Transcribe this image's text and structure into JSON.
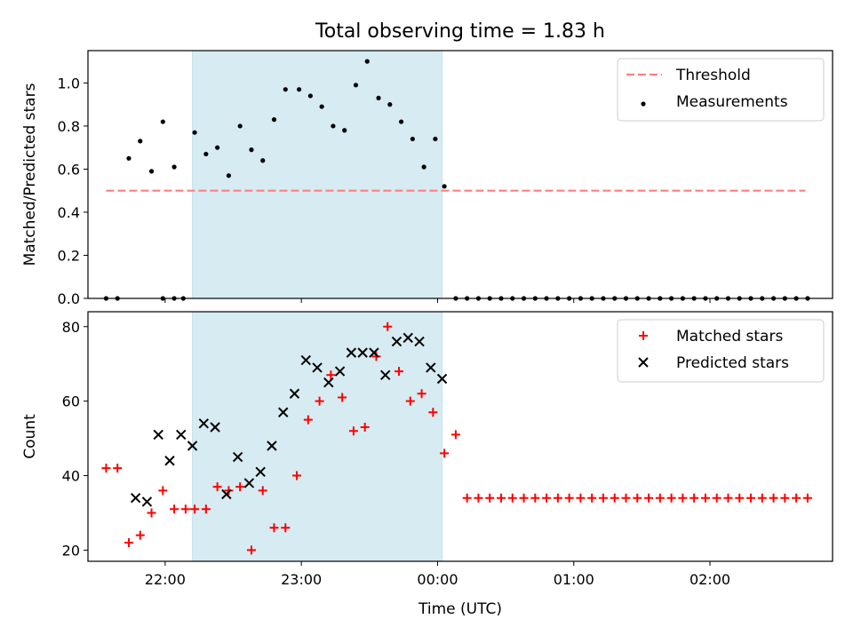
{
  "figure": {
    "title": "Total observing time = 1.83 h"
  },
  "chart_data": [
    {
      "type": "scatter",
      "ylabel": "Matched/Predicted stars",
      "ylim": [
        0,
        1.15
      ],
      "yticks": [
        "0.0",
        "0.2",
        "0.4",
        "0.6",
        "0.8",
        "1.0"
      ],
      "xlim": [
        "21:26",
        "02:54"
      ],
      "shaded_region": {
        "x_start": "22:12",
        "x_end": "00:02",
        "color": "#add8e6"
      },
      "legend": {
        "position": "top-right",
        "entries": [
          {
            "label": "Threshold",
            "style": "dashed-line",
            "color": "#ff7f7f"
          },
          {
            "label": "Measurements",
            "style": "dot",
            "color": "#000000"
          }
        ]
      },
      "threshold_line": {
        "y": 0.5,
        "x_start": "21:34",
        "x_end": "02:42",
        "color": "#ff7f7f"
      },
      "series": [
        {
          "name": "Measurements",
          "color": "#000000",
          "x": [
            "21:34",
            "21:39",
            "21:44",
            "21:49",
            "21:54",
            "21:59",
            "22:04",
            "21:59",
            "22:04",
            "22:08",
            "22:13",
            "22:18",
            "22:23",
            "22:28",
            "22:33",
            "22:38",
            "22:43",
            "22:48",
            "22:53",
            "22:59",
            "23:04",
            "23:09",
            "23:14",
            "23:19",
            "23:24",
            "23:29",
            "23:34",
            "23:39",
            "23:44",
            "23:49",
            "23:54",
            "23:59",
            "00:03",
            "00:08",
            "00:13",
            "00:18",
            "00:23",
            "00:28",
            "00:33",
            "00:38",
            "00:43",
            "00:48",
            "00:53",
            "00:58",
            "01:03",
            "01:08",
            "01:13",
            "01:18",
            "01:23",
            "01:28",
            "01:33",
            "01:38",
            "01:43",
            "01:48",
            "01:53",
            "01:58",
            "02:03",
            "02:08",
            "02:13",
            "02:18",
            "02:23",
            "02:28",
            "02:33",
            "02:38",
            "02:43"
          ],
          "y": [
            0.0,
            0.0,
            0.65,
            0.73,
            0.59,
            0.82,
            0.61,
            0.0,
            0.0,
            0.0,
            0.77,
            0.67,
            0.7,
            0.57,
            0.8,
            0.69,
            0.64,
            0.83,
            0.97,
            0.97,
            0.94,
            0.89,
            0.8,
            0.78,
            0.99,
            1.1,
            0.93,
            0.9,
            0.82,
            0.74,
            0.61,
            0.74,
            0.52,
            0.0,
            0.0,
            0.0,
            0.0,
            0.0,
            0.0,
            0.0,
            0.0,
            0.0,
            0.0,
            0.0,
            0.0,
            0.0,
            0.0,
            0.0,
            0.0,
            0.0,
            0.0,
            0.0,
            0.0,
            0.0,
            0.0,
            0.0,
            0.0,
            0.0,
            0.0,
            0.0,
            0.0,
            0.0,
            0.0,
            0.0,
            0.0
          ]
        }
      ]
    },
    {
      "type": "scatter",
      "xlabel": "Time (UTC)",
      "ylabel": "Count",
      "ylim": [
        17,
        84
      ],
      "yticks": [
        "20",
        "40",
        "60",
        "80"
      ],
      "xlim": [
        "21:26",
        "02:54"
      ],
      "xticks": [
        "22:00",
        "23:00",
        "00:00",
        "01:00",
        "02:00"
      ],
      "shaded_region": {
        "x_start": "22:12",
        "x_end": "00:02",
        "color": "#add8e6"
      },
      "legend": {
        "position": "top-right",
        "entries": [
          {
            "label": "Matched stars",
            "style": "plus",
            "color": "#ff0000"
          },
          {
            "label": "Predicted stars",
            "style": "x",
            "color": "#000000"
          }
        ]
      },
      "series": [
        {
          "name": "Matched stars",
          "marker": "plus",
          "color": "#ff0000",
          "x": [
            "21:34",
            "21:39",
            "21:44",
            "21:49",
            "21:54",
            "21:59",
            "22:04",
            "22:09",
            "22:13",
            "22:18",
            "22:23",
            "22:28",
            "22:33",
            "22:38",
            "22:43",
            "22:48",
            "22:53",
            "22:58",
            "23:03",
            "23:08",
            "23:13",
            "23:18",
            "23:23",
            "23:28",
            "23:33",
            "23:38",
            "23:43",
            "23:48",
            "23:53",
            "23:58",
            "00:03",
            "00:08",
            "00:13",
            "00:18",
            "00:23",
            "00:28",
            "00:33",
            "00:38",
            "00:43",
            "00:48",
            "00:53",
            "00:58",
            "01:03",
            "01:08",
            "01:13",
            "01:18",
            "01:23",
            "01:28",
            "01:33",
            "01:38",
            "01:43",
            "01:48",
            "01:53",
            "01:58",
            "02:03",
            "02:08",
            "02:13",
            "02:18",
            "02:23",
            "02:28",
            "02:33",
            "02:38",
            "02:43"
          ],
          "y": [
            42,
            42,
            22,
            24,
            30,
            36,
            31,
            31,
            31,
            31,
            37,
            36,
            37,
            20,
            36,
            26,
            26,
            40,
            55,
            60,
            67,
            61,
            52,
            53,
            72,
            80,
            68,
            60,
            62,
            57,
            46,
            51,
            34,
            34,
            34,
            34,
            34,
            34,
            34,
            34,
            34,
            34,
            34,
            34,
            34,
            34,
            34,
            34,
            34,
            34,
            34,
            34,
            34,
            34,
            34,
            34,
            34,
            34,
            34,
            34,
            34,
            34,
            34
          ]
        },
        {
          "name": "Predicted stars",
          "marker": "x",
          "color": "#000000",
          "x": [
            "21:47",
            "21:52",
            "21:57",
            "22:02",
            "22:07",
            "22:12",
            "22:17",
            "22:22",
            "22:27",
            "22:32",
            "22:37",
            "22:42",
            "22:47",
            "22:52",
            "22:57",
            "23:02",
            "23:07",
            "23:12",
            "23:17",
            "23:22",
            "23:27",
            "23:32",
            "23:37",
            "23:42",
            "23:47",
            "23:52",
            "23:57",
            "00:02"
          ],
          "y": [
            34,
            33,
            51,
            44,
            51,
            48,
            54,
            53,
            35,
            45,
            38,
            41,
            48,
            57,
            62,
            71,
            69,
            65,
            68,
            73,
            73,
            73,
            67,
            76,
            77,
            76,
            69,
            66
          ]
        }
      ]
    }
  ]
}
